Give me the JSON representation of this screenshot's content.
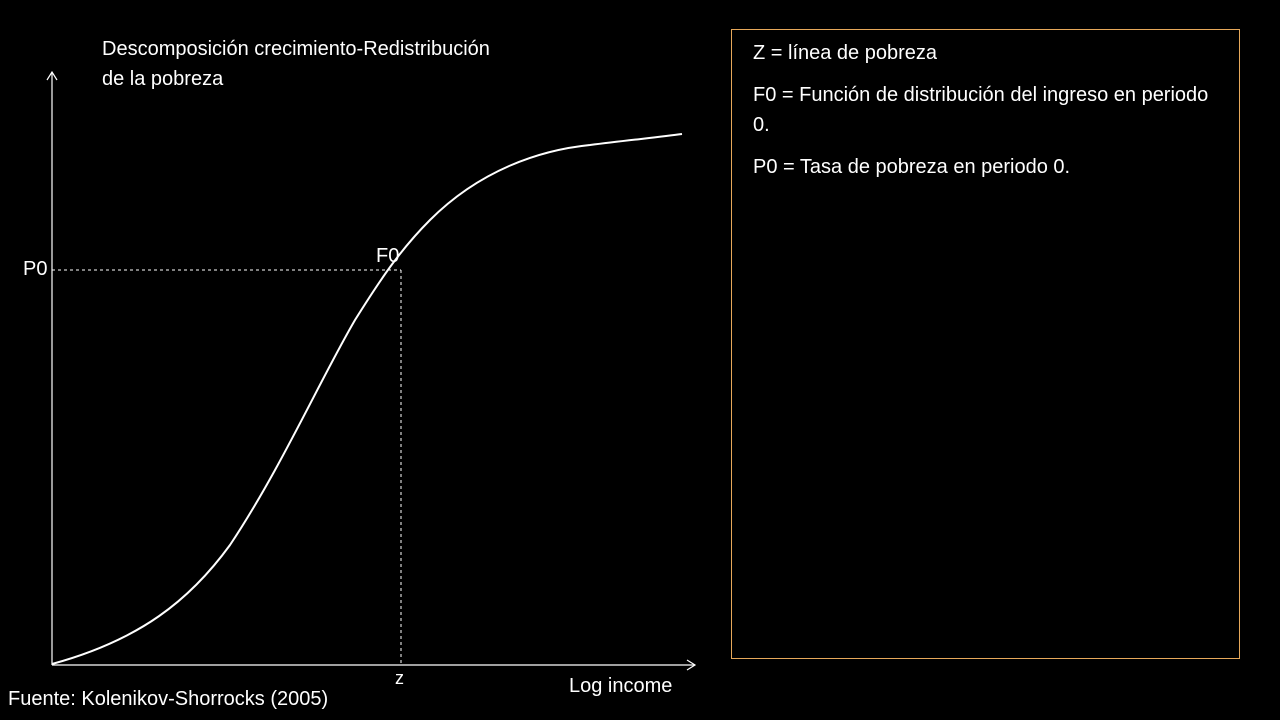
{
  "title": {
    "line1": "Descomposición crecimiento-Redistribución",
    "line2": "de la pobreza"
  },
  "diagram": {
    "y_marker_label": "P0",
    "curve_point_label": "F0",
    "x_marker_label": "z",
    "x_axis_label": "Log income",
    "line_color": "#ffffff",
    "chart_data": {
      "type": "line",
      "series": [
        {
          "values": "S-shaped cumulative distribution curve"
        }
      ],
      "markers": [
        {
          "x": "z",
          "y": "P0",
          "point": "F0"
        }
      ]
    }
  },
  "legend": {
    "border_color": "#e6a85a",
    "items": [
      "Z = línea de pobreza",
      "F0 = Función de distribución del ingreso en periodo 0.",
      "P0 = Tasa de pobreza en periodo 0."
    ]
  },
  "source": "Fuente: Kolenikov-Shorrocks (2005)"
}
